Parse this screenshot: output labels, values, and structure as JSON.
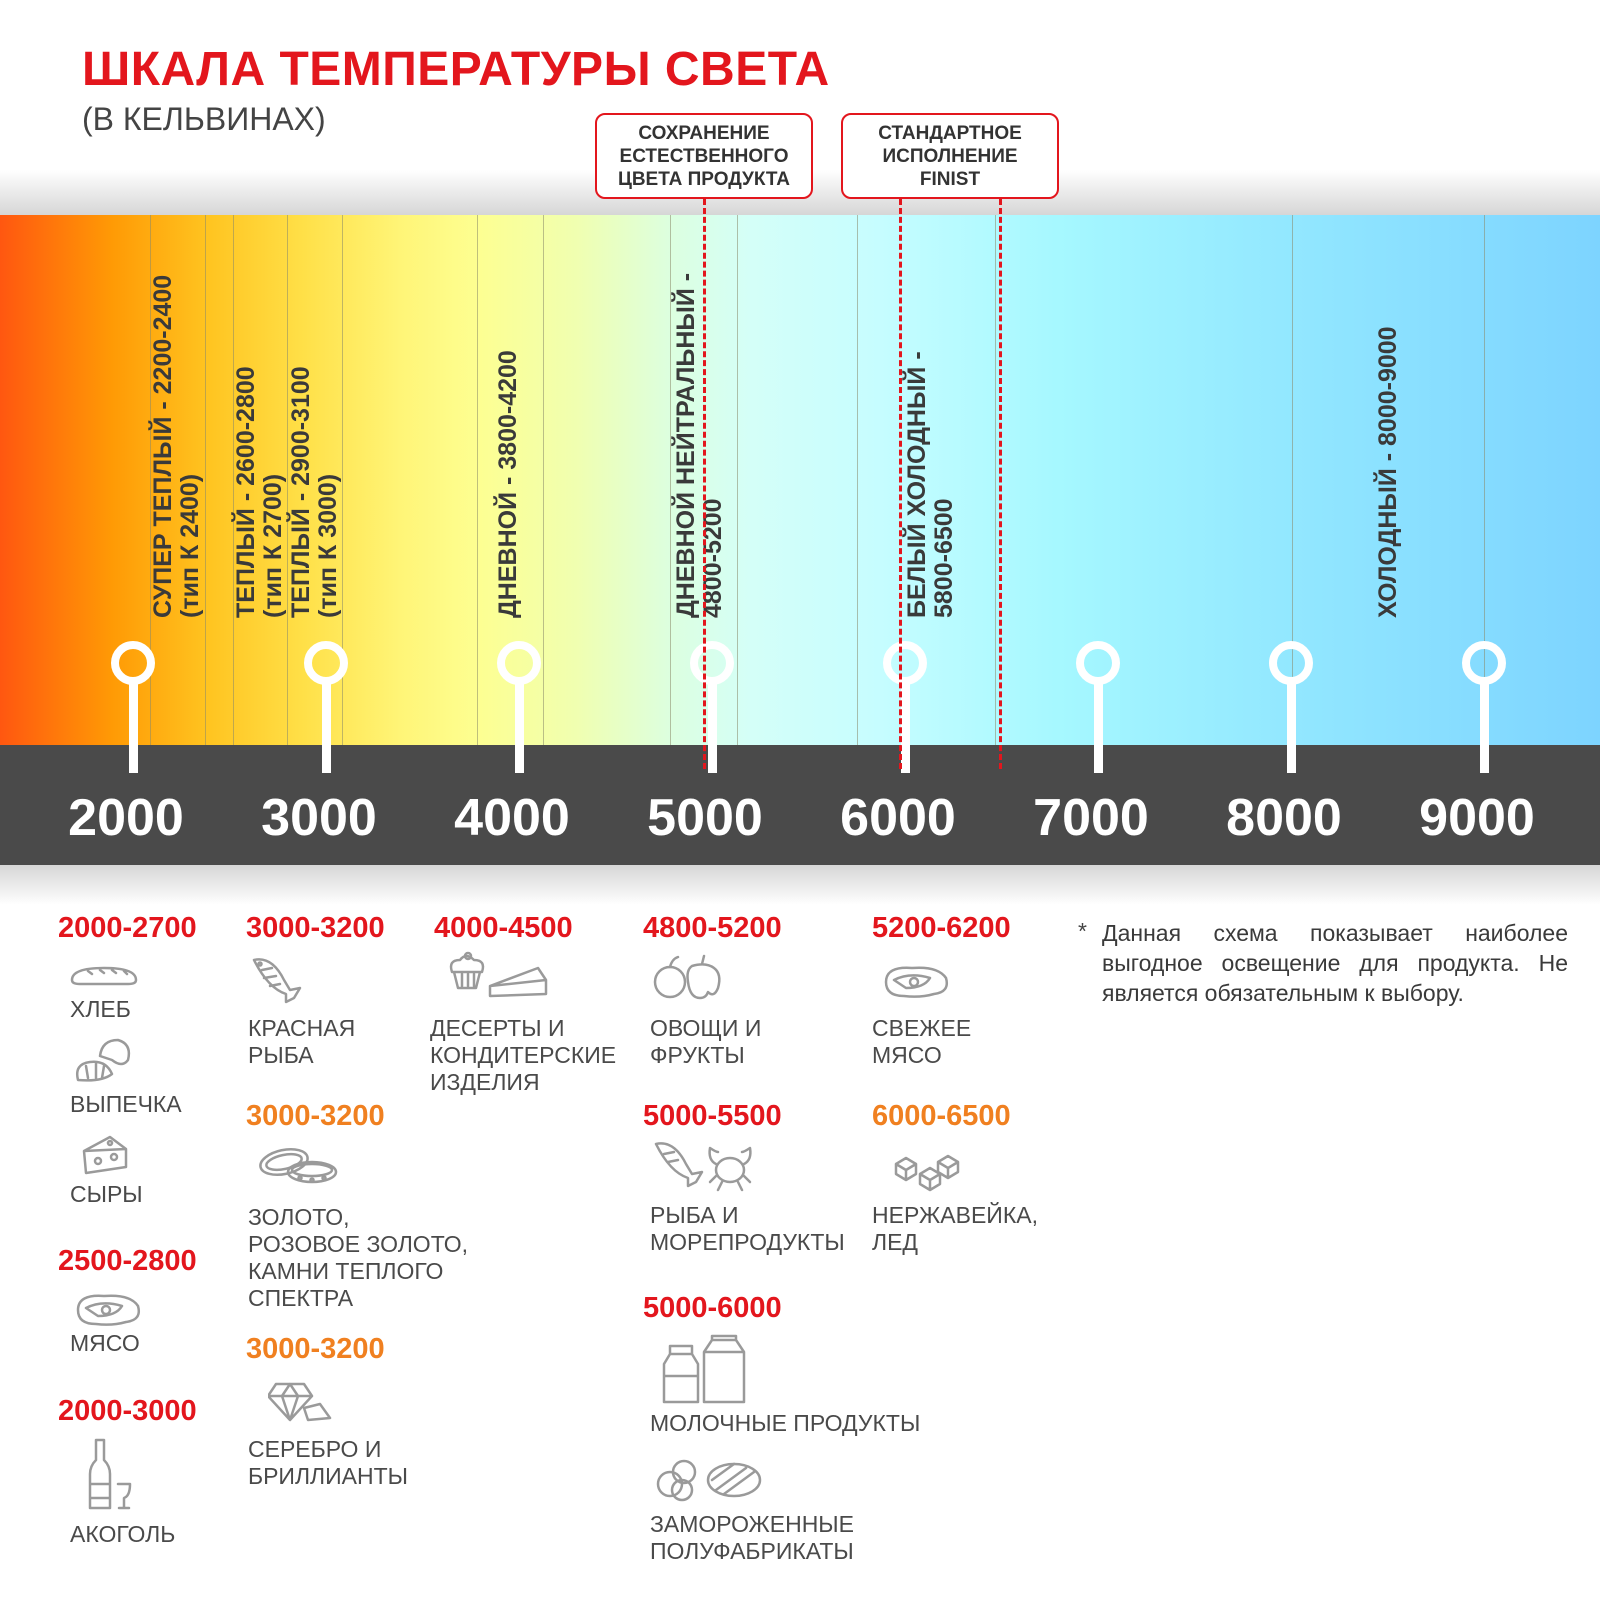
{
  "title": "ШКАЛА ТЕМПЕРАТУРЫ СВЕТА",
  "subtitle": "(В КЕЛЬВИНАХ)",
  "callouts": [
    {
      "lines": [
        "СОХРАНЕНИЕ",
        "ЕСТЕСТВЕННОГО",
        "ЦВЕТА ПРОДУКТА"
      ]
    },
    {
      "lines": [
        "СТАНДАРТНОЕ",
        "ИСПОЛНЕНИЕ",
        "FINIST"
      ]
    }
  ],
  "colors": {
    "accent": "#e3161d",
    "orange": "#f08020",
    "dark_band": "#4a4a4a",
    "gradient": [
      "#ff5710",
      "#ff9a05",
      "#fff577",
      "#d4fff8",
      "#a6f8ff",
      "#7dd4ff"
    ]
  },
  "zones": [
    {
      "line1": "СУПЕР ТЕПЛЫЙ - 2200-2400",
      "line2": "(тип К 2400)"
    },
    {
      "line1": "ТЕПЛЫЙ - 2600-2800",
      "line2": "(тип К 2700)"
    },
    {
      "line1": "ТЕПЛЫЙ - 2900-3100",
      "line2": "(тип К 3000)"
    },
    {
      "line1": "ДНЕВНОЙ - 3800-4200",
      "line2": ""
    },
    {
      "line1": "ДНЕВНОЙ НЕЙТРАЛЬНЫЙ -",
      "line2": "4800-5200"
    },
    {
      "line1": "БЕЛЫЙ ХОЛОДНЫЙ -",
      "line2": "5800-6500"
    },
    {
      "line1": "ХОЛОДНЫЙ - 8000-9000",
      "line2": ""
    }
  ],
  "ticks": [
    "2000",
    "3000",
    "4000",
    "5000",
    "6000",
    "7000",
    "8000",
    "9000"
  ],
  "products": [
    {
      "range": "2000-2700",
      "color": "red",
      "icon": "bread-icon",
      "label": "ХЛЕБ"
    },
    {
      "range": "",
      "icon": "croissant-icon",
      "label": "ВЫПЕЧКА"
    },
    {
      "range": "",
      "icon": "cheese-icon",
      "label": "СЫРЫ"
    },
    {
      "range": "2500-2800",
      "color": "red",
      "icon": "steak-icon",
      "label": "МЯСО"
    },
    {
      "range": "2000-3000",
      "color": "red",
      "icon": "wine-bottle-icon",
      "label": "АКОГОЛЬ"
    },
    {
      "range": "3000-3200",
      "color": "red",
      "icon": "fish-icon",
      "label": "КРАСНАЯ\nРЫБА"
    },
    {
      "range": "3000-3200",
      "color": "orange",
      "icon": "rings-icon",
      "label": "ЗОЛОТО,\nРОЗОВОЕ ЗОЛОТО,\nКАМНИ ТЕПЛОГО\nСПЕКТРА"
    },
    {
      "range": "3000-3200",
      "color": "orange",
      "icon": "diamond-icon",
      "label": "СЕРЕБРО И\nБРИЛЛИАНТЫ"
    },
    {
      "range": "4000-4500",
      "color": "red",
      "icon": "cake-icon",
      "label": "ДЕСЕРТЫ И\nКОНДИТЕРСКИЕ\nИЗДЕЛИЯ"
    },
    {
      "range": "4800-5200",
      "color": "red",
      "icon": "fruit-icon",
      "label": "ОВОЩИ И\nФРУКТЫ"
    },
    {
      "range": "5000-5500",
      "color": "red",
      "icon": "seafood-icon",
      "label": "РЫБА И\nМОРЕПРОДУКТЫ"
    },
    {
      "range": "5000-6000",
      "color": "red",
      "icon": "milk-icon",
      "label": "МОЛОЧНЫЕ ПРОДУКТЫ"
    },
    {
      "range": "",
      "icon": "frozen-food-icon",
      "label": "ЗАМОРОЖЕННЫЕ\nПОЛУФАБРИКАТЫ"
    },
    {
      "range": "5200-6200",
      "color": "red",
      "icon": "steak-icon",
      "label": "СВЕЖЕЕ\nМЯСО"
    },
    {
      "range": "6000-6500",
      "color": "orange",
      "icon": "ice-icon",
      "label": "НЕРЖАВЕЙКА,\nЛЕД"
    }
  ],
  "note_star": "*",
  "note": "Данная схема показывает наиболее выгодное освещение для продукта. Не является обязательным к выбору."
}
